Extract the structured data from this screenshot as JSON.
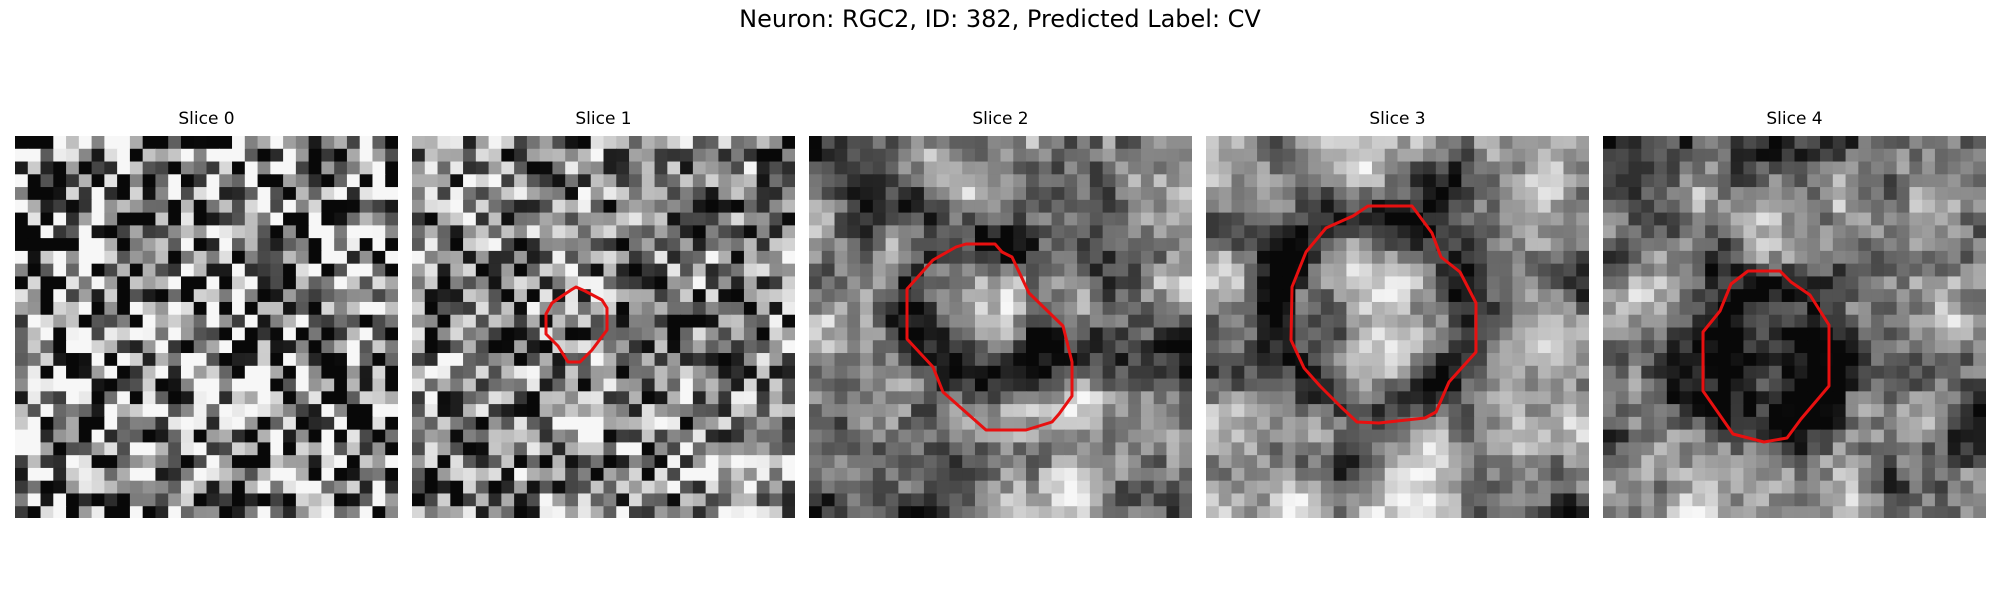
{
  "figure": {
    "title": "Neuron: RGC2, ID: 382, Predicted Label: CV",
    "contour_color": "#e81010"
  },
  "panels": [
    {
      "title": "Slice 0"
    },
    {
      "title": "Slice 1"
    },
    {
      "title": "Slice 2"
    },
    {
      "title": "Slice 3"
    },
    {
      "title": "Slice 4"
    }
  ]
}
